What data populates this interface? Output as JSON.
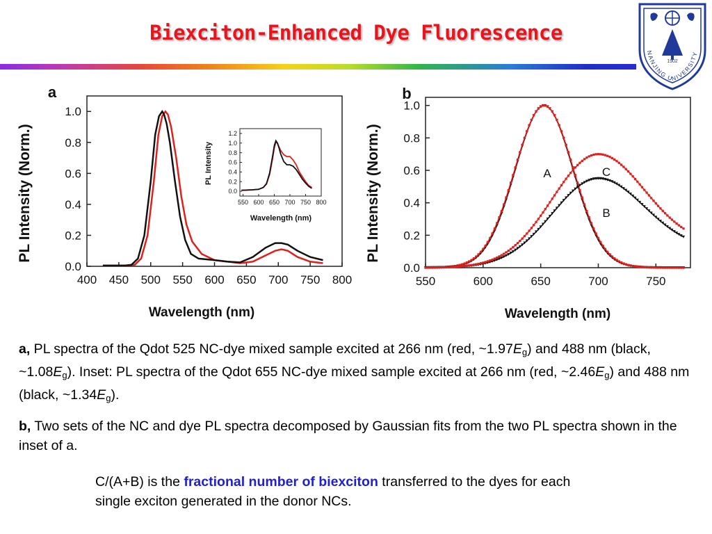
{
  "slide": {
    "title": "Biexciton-Enhanced Dye Fluorescence",
    "logo": {
      "year": "1902",
      "ring_text": "NANJING UNIVERSITY"
    }
  },
  "chart_data": [
    {
      "panel": "a",
      "type": "line",
      "ylabel": "PL Intensity (Norm.)",
      "xlabel": "Wavelength (nm)",
      "xlim": [
        400,
        800
      ],
      "ylim": [
        0,
        1.1
      ],
      "xticks": [
        "400",
        "450",
        "500",
        "550",
        "600",
        "650",
        "700",
        "750",
        "800"
      ],
      "yticks": [
        "0.0",
        "0.2",
        "0.4",
        "0.6",
        "0.8",
        "1.0"
      ],
      "series": [
        {
          "color": "#e0201c",
          "x": [
            425,
            460,
            475,
            485,
            495,
            505,
            512,
            518,
            523,
            527,
            532,
            540,
            548,
            556,
            565,
            580,
            600,
            620,
            640,
            660,
            680,
            695,
            705,
            715,
            730,
            750,
            770
          ],
          "y": [
            0.005,
            0.005,
            0.01,
            0.05,
            0.2,
            0.55,
            0.85,
            0.97,
            1.0,
            0.98,
            0.9,
            0.7,
            0.45,
            0.27,
            0.16,
            0.08,
            0.04,
            0.03,
            0.02,
            0.03,
            0.07,
            0.1,
            0.11,
            0.1,
            0.06,
            0.03,
            0.02
          ]
        },
        {
          "color": "#111111",
          "x": [
            425,
            460,
            470,
            480,
            490,
            500,
            507,
            513,
            518,
            521,
            525,
            530,
            538,
            546,
            554,
            563,
            575,
            600,
            620,
            640,
            660,
            680,
            695,
            705,
            715,
            730,
            750,
            770
          ],
          "y": [
            0.005,
            0.005,
            0.01,
            0.05,
            0.2,
            0.55,
            0.85,
            0.97,
            1.0,
            0.98,
            0.92,
            0.8,
            0.55,
            0.32,
            0.17,
            0.08,
            0.05,
            0.04,
            0.03,
            0.025,
            0.06,
            0.12,
            0.15,
            0.15,
            0.14,
            0.1,
            0.06,
            0.04
          ]
        }
      ],
      "inset": {
        "xlabel": "Wavelength (nm)",
        "ylabel": "PL Intensity",
        "xlim": [
          540,
          800
        ],
        "ylim": [
          -0.1,
          1.3
        ],
        "xticks": [
          "550",
          "600",
          "650",
          "700",
          "750",
          "800"
        ],
        "yticks": [
          "0.0",
          "0.2",
          "0.4",
          "0.6",
          "0.8",
          "1.0",
          "1.2"
        ],
        "series": [
          {
            "color": "#e0201c",
            "x": [
              545,
              580,
              600,
              615,
              625,
              635,
              645,
              650,
              655,
              660,
              665,
              670,
              680,
              690,
              700,
              710,
              720,
              730,
              740,
              750,
              760,
              770
            ],
            "y": [
              0.02,
              0.03,
              0.04,
              0.08,
              0.15,
              0.35,
              0.7,
              0.9,
              1.02,
              1.0,
              0.92,
              0.85,
              0.76,
              0.72,
              0.72,
              0.65,
              0.55,
              0.4,
              0.3,
              0.2,
              0.12,
              0.08
            ]
          },
          {
            "color": "#111111",
            "x": [
              545,
              580,
              600,
              615,
              625,
              635,
              645,
              650,
              655,
              660,
              665,
              670,
              680,
              690,
              700,
              710,
              720,
              730,
              740,
              750,
              760,
              770
            ],
            "y": [
              0.02,
              0.03,
              0.04,
              0.08,
              0.16,
              0.38,
              0.75,
              0.95,
              1.05,
              1.0,
              0.9,
              0.78,
              0.62,
              0.55,
              0.55,
              0.52,
              0.45,
              0.35,
              0.25,
              0.17,
              0.1,
              0.06
            ]
          }
        ]
      }
    },
    {
      "panel": "b",
      "type": "line",
      "ylabel": "PL Intensity (Norm.)",
      "xlabel": "Wavelength (nm)",
      "xlim": [
        550,
        780
      ],
      "ylim": [
        0,
        1.05
      ],
      "xticks": [
        "550",
        "600",
        "650",
        "700",
        "750"
      ],
      "yticks": [
        "0.0",
        "0.2",
        "0.4",
        "0.6",
        "0.8",
        "1.0"
      ],
      "labels": [
        "A",
        "B",
        "C"
      ],
      "series": [
        {
          "name": "A",
          "color": "#111111",
          "markers": true,
          "center": 653,
          "amp": 1.0,
          "sigma": 25
        },
        {
          "name": "A",
          "color": "#e0201c",
          "markers": true,
          "center": 653,
          "amp": 1.0,
          "sigma": 25.5
        },
        {
          "name": "B",
          "color": "#111111",
          "markers": true,
          "center": 700,
          "amp": 0.55,
          "sigma": 40,
          "tail": 0.11
        },
        {
          "name": "C",
          "color": "#e0201c",
          "markers": true,
          "center": 700,
          "amp": 0.7,
          "sigma": 40,
          "tail": 0.14
        }
      ]
    }
  ],
  "captions": {
    "a_label": "a,",
    "a_text_1": " PL spectra of the Qdot 525 NC-dye mixed sample excited at 266 nm (red, ~1.97",
    "a_text_2": ") and 488 nm (black, ~1.08",
    "a_text_3": "). Inset: PL spectra of the Qdot 655 NC-dye mixed sample excited at 266 nm (red, ~2.46",
    "a_text_4": ") and 488 nm (black, ~1.34",
    "a_text_5": ").",
    "eg_E": "E",
    "eg_sub": "g",
    "b_label": "b,",
    "b_text": " Two sets of the NC and dye PL spectra decomposed by Gaussian fits from the two PL spectra shown in the inset of a.",
    "c_pre": "C/(A+B) is the ",
    "c_highlight": "fractional number of biexciton",
    "c_post": " transferred to the dyes for each single exciton generated in the donor NCs."
  }
}
